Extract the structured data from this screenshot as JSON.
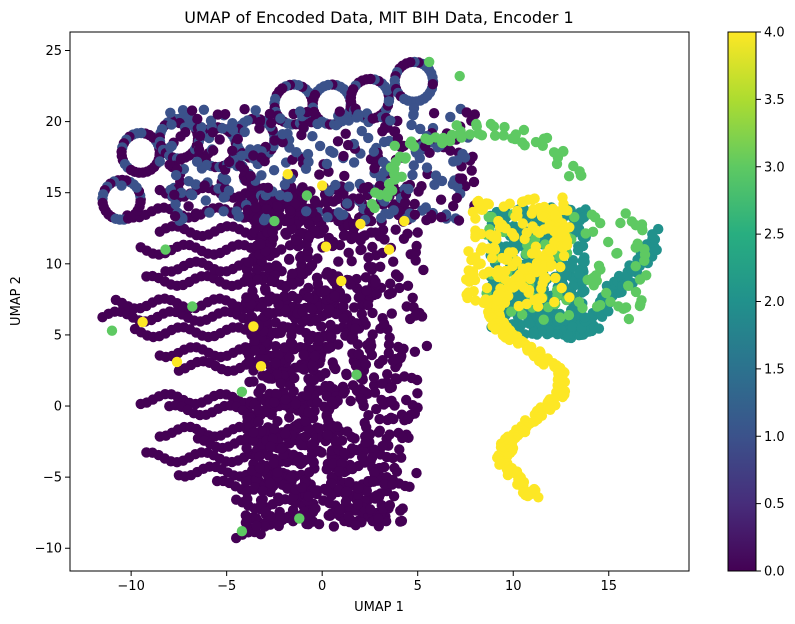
{
  "chart_data": {
    "type": "scatter",
    "title": "UMAP of Encoded Data, MIT BIH Data, Encoder 1",
    "xlabel": "UMAP 1",
    "ylabel": "UMAP 2",
    "xlim": [
      -13.2,
      19.2
    ],
    "ylim": [
      -11.6,
      26.3
    ],
    "x_ticks": [
      -10,
      -5,
      0,
      5,
      10,
      15
    ],
    "x_tick_labels": [
      "−10",
      "−5",
      "0",
      "5",
      "10",
      "15"
    ],
    "y_ticks": [
      -10,
      -5,
      0,
      5,
      10,
      15,
      20,
      25
    ],
    "y_tick_labels": [
      "−10",
      "−5",
      "0",
      "5",
      "10",
      "15",
      "20",
      "25"
    ],
    "grid": false,
    "colormap": "viridis",
    "colorbar": {
      "range": [
        0.0,
        4.0
      ],
      "ticks": [
        0.0,
        0.5,
        1.0,
        1.5,
        2.0,
        2.5,
        3.0,
        3.5,
        4.0
      ],
      "tick_labels": [
        "0.0",
        "0.5",
        "1.0",
        "1.5",
        "2.0",
        "2.5",
        "3.0",
        "3.5",
        "4.0"
      ]
    },
    "clusters": [
      {
        "class": 0,
        "color": "#440154",
        "region": "left lobes and central body",
        "x_range": [
          -11.5,
          5.5
        ],
        "y_range": [
          -9.8,
          22.5
        ]
      },
      {
        "class": 1,
        "color": "#3b528b",
        "region": "upper loops, mixed with class 0",
        "x_range": [
          -10.5,
          9.0
        ],
        "y_range": [
          -4.5,
          24.5
        ]
      },
      {
        "class": 2,
        "color": "#21918c",
        "region": "right arm",
        "x_range": [
          8.5,
          17.8
        ],
        "y_range": [
          4.5,
          14.2
        ]
      },
      {
        "class": 3,
        "color": "#5ec962",
        "region": "upper right arc",
        "x_range": [
          2.0,
          14.5
        ],
        "y_range": [
          13.0,
          24.5
        ]
      },
      {
        "class": 4,
        "color": "#fde725",
        "region": "S-shaped tail at right",
        "x_range": [
          8.0,
          13.5
        ],
        "y_range": [
          -6.8,
          16.0
        ]
      }
    ]
  }
}
